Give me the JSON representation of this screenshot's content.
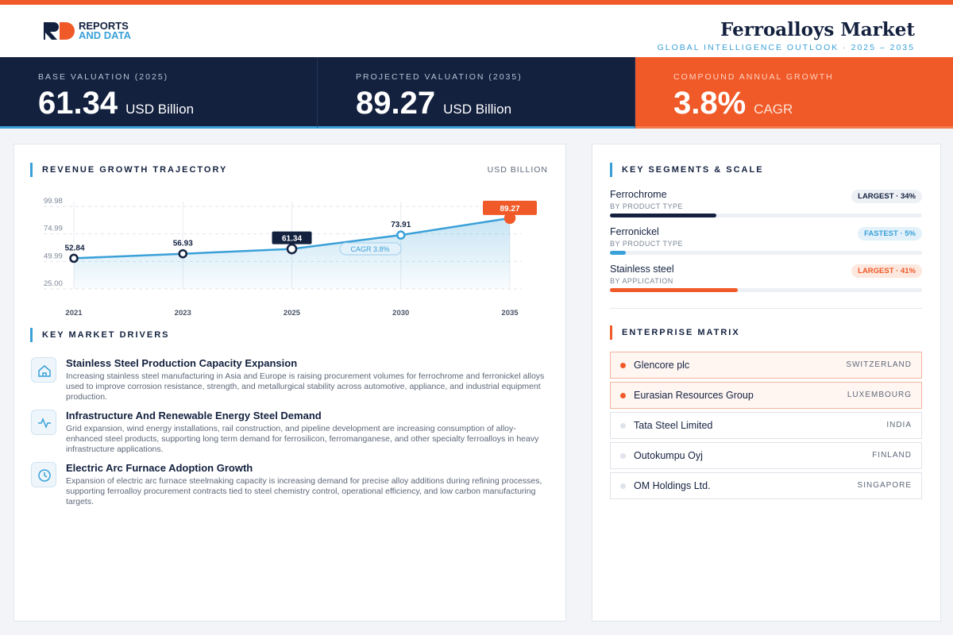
{
  "header": {
    "logo_line1": "REPORTS",
    "logo_line2": "AND DATA",
    "title": "Ferroalloys Market",
    "subtitle": "GLOBAL INTELLIGENCE OUTLOOK · 2025 – 2035"
  },
  "kpis": [
    {
      "label": "BASE VALUATION (2025)",
      "value": "61.34",
      "unit": "USD Billion"
    },
    {
      "label": "PROJECTED VALUATION (2035)",
      "value": "89.27",
      "unit": "USD Billion"
    },
    {
      "label": "COMPOUND ANNUAL GROWTH",
      "value": "3.8%",
      "unit": "CAGR"
    }
  ],
  "chart_data": {
    "type": "line",
    "title": "REVENUE GROWTH TRAJECTORY",
    "unit_label": "USD BILLION",
    "categories": [
      "2021",
      "2023",
      "2025",
      "2030",
      "2035"
    ],
    "values": [
      52.84,
      56.93,
      61.34,
      73.91,
      89.27
    ],
    "color": "#3aa0d8",
    "ylim": [
      25,
      99.98
    ],
    "yticks": [
      {
        "value": 25,
        "label": "25.00"
      },
      49.99,
      74.99,
      99.98
    ],
    "grid": true,
    "annotation": "CAGR 3.8%"
  },
  "drivers": {
    "title": "KEY MARKET DRIVERS",
    "items": [
      {
        "title": "Stainless Steel Production Capacity Expansion",
        "text": "Increasing stainless steel manufacturing in Asia and Europe is raising procurement volumes for ferrochrome and ferronickel alloys used to improve corrosion resistance, strength, and metallurgical stability across automotive, appliance, and industrial equipment production."
      },
      {
        "title": "Infrastructure And Renewable Energy Steel Demand",
        "text": "Grid expansion, wind energy installations, rail construction, and pipeline development are increasing consumption of alloy-enhanced steel products, supporting long term demand for ferrosilicon, ferromanganese, and other specialty ferroalloys in heavy infrastructure applications."
      },
      {
        "title": "Electric Arc Furnace Adoption Growth",
        "text": "Expansion of electric arc furnace steelmaking capacity is increasing demand for precise alloy additions during refining processes, supporting ferroalloy procurement contracts tied to steel chemistry control, operational efficiency, and low carbon manufacturing targets."
      }
    ]
  },
  "segments": {
    "title": "KEY SEGMENTS & SCALE",
    "items": [
      {
        "name": "Ferrochrome",
        "sub": "BY PRODUCT TYPE",
        "badge": "LARGEST · 34%",
        "share": 34,
        "color": "#13213f"
      },
      {
        "name": "Ferronickel",
        "sub": "BY PRODUCT TYPE",
        "badge": "FASTEST · 5%",
        "share": 5,
        "color": "#3aa0d8"
      },
      {
        "name": "Stainless steel",
        "sub": "BY APPLICATION",
        "badge": "LARGEST · 41%",
        "share": 41,
        "color": "#f05a28"
      }
    ]
  },
  "enterprise": {
    "title": "ENTERPRISE MATRIX",
    "rows": [
      {
        "name": "Glencore plc",
        "country": "SWITZERLAND"
      },
      {
        "name": "Eurasian Resources Group",
        "country": "LUXEMBOURG"
      },
      {
        "name": "Tata Steel Limited",
        "country": "INDIA"
      },
      {
        "name": "Outokumpu Oyj",
        "country": "FINLAND"
      },
      {
        "name": "OM Holdings Ltd.",
        "country": "SINGAPORE"
      }
    ]
  }
}
